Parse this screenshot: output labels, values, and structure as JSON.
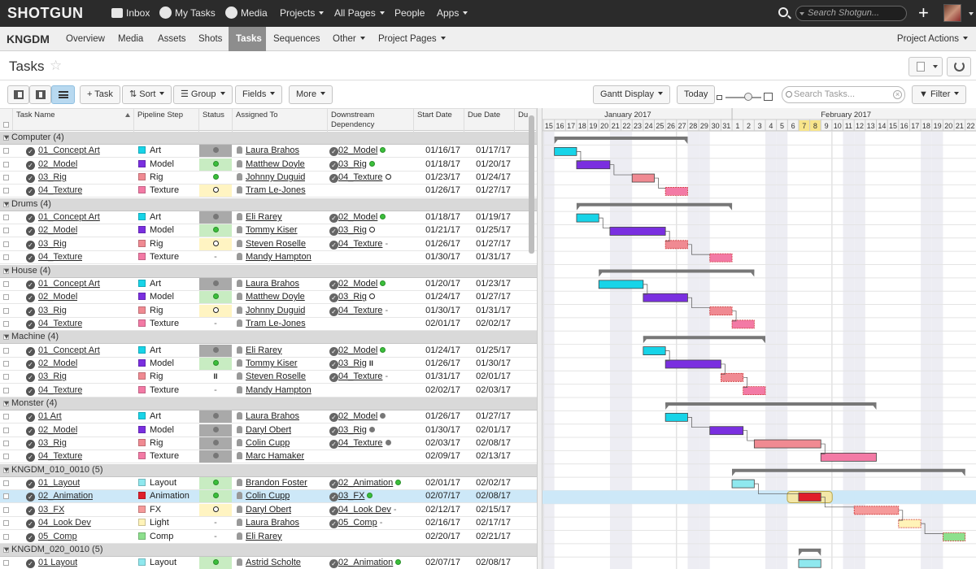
{
  "topnav": {
    "logo": "SHOTGUN",
    "items": [
      {
        "label": "Inbox",
        "icon": "inbox-icon"
      },
      {
        "label": "My Tasks",
        "icon": "check-circle-icon"
      },
      {
        "label": "Media",
        "icon": "play-icon"
      },
      {
        "label": "Projects",
        "caret": true
      },
      {
        "label": "All Pages",
        "caret": true
      },
      {
        "label": "People"
      },
      {
        "label": "Apps",
        "caret": true
      }
    ],
    "search_placeholder": "Search Shotgun...",
    "plus": "+"
  },
  "project": {
    "name": "KNGDM",
    "tabs": [
      "Overview",
      "Media",
      "Assets",
      "Shots",
      "Tasks",
      "Sequences",
      "Other",
      "Project Pages"
    ],
    "active_tab": "Tasks",
    "actions": "Project Actions"
  },
  "page": {
    "title": "Tasks"
  },
  "toolbar": {
    "add_task": "+ Task",
    "sort": "Sort",
    "group": "Group",
    "fields": "Fields",
    "more": "More",
    "gantt_display": "Gantt Display",
    "today": "Today",
    "search_placeholder": "Search Tasks...",
    "filter": "Filter"
  },
  "columns": {
    "task_name": "Task Name",
    "pipeline_step": "Pipeline Step",
    "status": "Status",
    "assigned_to": "Assigned To",
    "downstream": "Downstream Dependency",
    "start_date": "Start Date",
    "due_date": "Due Date",
    "duration": "Du"
  },
  "step_colors": {
    "Art": "#17d4e8",
    "Model": "#7a2fe0",
    "Rig": "#f08a92",
    "Texture": "#f37aa5",
    "Layout": "#8fe8ee",
    "Animation": "#e01e2a",
    "FX": "#f59a9a",
    "Light": "#fff3b8",
    "Comp": "#8de08d"
  },
  "groups": [
    {
      "label": "Computer (4)",
      "tasks": [
        {
          "name": "01_Concept Art",
          "step": "Art",
          "status": "ip",
          "assignee": "Laura Brahos",
          "dep": "02_Model",
          "dep_status": "green",
          "start": "01/16/17",
          "due": "01/17/17"
        },
        {
          "name": "02_Model",
          "step": "Model",
          "status": "green",
          "assignee": "Matthew Doyle",
          "dep": "03_Rig",
          "dep_status": "green",
          "start": "01/18/17",
          "due": "01/20/17"
        },
        {
          "name": "03_Rig",
          "step": "Rig",
          "status": "green-bg",
          "assignee": "Johnny Duguid",
          "dep": "04_Texture",
          "dep_status": "open",
          "start": "01/23/17",
          "due": "01/24/17"
        },
        {
          "name": "04_Texture",
          "step": "Texture",
          "status": "open",
          "assignee": "Tram Le-Jones",
          "dep": "",
          "dep_status": "",
          "start": "01/26/17",
          "due": "01/27/17"
        }
      ]
    },
    {
      "label": "Drums (4)",
      "tasks": [
        {
          "name": "01_Concept Art",
          "step": "Art",
          "status": "ip",
          "assignee": "Eli Rarey",
          "dep": "02_Model",
          "dep_status": "green",
          "start": "01/18/17",
          "due": "01/19/17"
        },
        {
          "name": "02_Model",
          "step": "Model",
          "status": "green",
          "assignee": "Tommy Kiser",
          "dep": "03_Rig",
          "dep_status": "open",
          "start": "01/21/17",
          "due": "01/25/17"
        },
        {
          "name": "03_Rig",
          "step": "Rig",
          "status": "open",
          "assignee": "Steven Roselle",
          "dep": "04_Texture",
          "dep_status": "dash",
          "start": "01/26/17",
          "due": "01/27/17"
        },
        {
          "name": "04_Texture",
          "step": "Texture",
          "status": "dash",
          "assignee": "Mandy Hampton",
          "dep": "",
          "dep_status": "",
          "start": "01/30/17",
          "due": "01/31/17"
        }
      ]
    },
    {
      "label": "House (4)",
      "tasks": [
        {
          "name": "01_Concept Art",
          "step": "Art",
          "status": "ip",
          "assignee": "Laura Brahos",
          "dep": "02_Model",
          "dep_status": "green",
          "start": "01/20/17",
          "due": "01/23/17"
        },
        {
          "name": "02_Model",
          "step": "Model",
          "status": "green",
          "assignee": "Matthew Doyle",
          "dep": "03_Rig",
          "dep_status": "open",
          "start": "01/24/17",
          "due": "01/27/17"
        },
        {
          "name": "03_Rig",
          "step": "Rig",
          "status": "open",
          "assignee": "Johnny Duguid",
          "dep": "04_Texture",
          "dep_status": "dash",
          "start": "01/30/17",
          "due": "01/31/17"
        },
        {
          "name": "04_Texture",
          "step": "Texture",
          "status": "dash",
          "assignee": "Tram Le-Jones",
          "dep": "",
          "dep_status": "",
          "start": "02/01/17",
          "due": "02/02/17"
        }
      ]
    },
    {
      "label": "Machine (4)",
      "tasks": [
        {
          "name": "01_Concept Art",
          "step": "Art",
          "status": "ip",
          "assignee": "Eli Rarey",
          "dep": "02_Model",
          "dep_status": "green",
          "start": "01/24/17",
          "due": "01/25/17"
        },
        {
          "name": "02_Model",
          "step": "Model",
          "status": "green",
          "assignee": "Tommy Kiser",
          "dep": "03_Rig",
          "dep_status": "pause",
          "start": "01/26/17",
          "due": "01/30/17"
        },
        {
          "name": "03_Rig",
          "step": "Rig",
          "status": "pause",
          "assignee": "Steven Roselle",
          "dep": "04_Texture",
          "dep_status": "dash",
          "start": "01/31/17",
          "due": "02/01/17"
        },
        {
          "name": "04_Texture",
          "step": "Texture",
          "status": "dash",
          "assignee": "Mandy Hampton",
          "dep": "",
          "dep_status": "",
          "start": "02/02/17",
          "due": "02/03/17"
        }
      ]
    },
    {
      "label": "Monster (4)",
      "tasks": [
        {
          "name": "01 Art",
          "step": "Art",
          "status": "ip",
          "assignee": "Laura Brahos",
          "dep": "02_Model",
          "dep_status": "grey",
          "start": "01/26/17",
          "due": "01/27/17"
        },
        {
          "name": "02_Model",
          "step": "Model",
          "status": "grey",
          "assignee": "Daryl Obert",
          "dep": "03_Rig",
          "dep_status": "grey",
          "start": "01/30/17",
          "due": "02/01/17"
        },
        {
          "name": "03_Rig",
          "step": "Rig",
          "status": "grey",
          "assignee": "Colin Cupp",
          "dep": "04_Texture",
          "dep_status": "grey",
          "start": "02/03/17",
          "due": "02/08/17"
        },
        {
          "name": "04_Texture",
          "step": "Texture",
          "status": "grey",
          "assignee": "Marc Hamaker",
          "dep": "",
          "dep_status": "",
          "start": "02/09/17",
          "due": "02/13/17"
        }
      ]
    },
    {
      "label": "KNGDM_010_0010 (5)",
      "tasks": [
        {
          "name": "01_Layout",
          "step": "Layout",
          "status": "green",
          "assignee": "Brandon Foster",
          "dep": "02_Animation",
          "dep_status": "green",
          "start": "02/01/17",
          "due": "02/02/17"
        },
        {
          "name": "02_Animation",
          "step": "Animation",
          "status": "green",
          "assignee": "Colin Cupp",
          "dep": "03_FX",
          "dep_status": "green",
          "start": "02/07/17",
          "due": "02/08/17",
          "selected": true
        },
        {
          "name": "03_FX",
          "step": "FX",
          "status": "open",
          "assignee": "Daryl Obert",
          "dep": "04_Look Dev",
          "dep_status": "dash",
          "start": "02/12/17",
          "due": "02/15/17"
        },
        {
          "name": "04_Look Dev",
          "step": "Light",
          "status": "dash",
          "assignee": "Laura Brahos",
          "dep": "05_Comp",
          "dep_status": "dash",
          "start": "02/16/17",
          "due": "02/17/17"
        },
        {
          "name": "05_Comp",
          "step": "Comp",
          "status": "dash",
          "assignee": "Eli Rarey",
          "dep": "",
          "dep_status": "",
          "start": "02/20/17",
          "due": "02/21/17"
        }
      ]
    },
    {
      "label": "KNGDM_020_0010 (5)",
      "tasks": [
        {
          "name": "01 Layout",
          "step": "Layout",
          "status": "green",
          "assignee": "Astrid Scholte",
          "dep": "02_Animation",
          "dep_status": "green",
          "start": "02/07/17",
          "due": "02/08/17"
        }
      ]
    }
  ],
  "gantt": {
    "months": [
      {
        "label": "January 2017"
      },
      {
        "label": "February 2017"
      }
    ],
    "days": [
      "15",
      "16",
      "17",
      "18",
      "19",
      "20",
      "21",
      "22",
      "23",
      "24",
      "25",
      "26",
      "27",
      "28",
      "29",
      "30",
      "31",
      "1",
      "2",
      "3",
      "4",
      "5",
      "6",
      "7",
      "8",
      "9",
      "10",
      "11",
      "12",
      "13",
      "14",
      "15",
      "16",
      "17",
      "18",
      "19",
      "20",
      "21",
      "22"
    ],
    "highlight_days": [
      "7",
      "8"
    ]
  }
}
